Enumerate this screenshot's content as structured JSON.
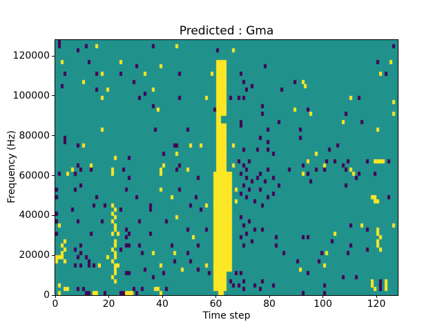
{
  "figure": {
    "background": "#ffffff",
    "text_color": "#000000",
    "spine_color": "#000000"
  },
  "chart_data": {
    "type": "heatmap",
    "title": "Predicted : Gma",
    "xlabel": "Time step",
    "ylabel": "Frequency (Hz)",
    "xlim": [
      0,
      128
    ],
    "ylim": [
      0,
      128000
    ],
    "x_ticks": [
      0,
      20,
      40,
      60,
      80,
      100,
      120
    ],
    "y_ticks": [
      0,
      20000,
      40000,
      60000,
      80000,
      100000,
      120000
    ],
    "grid": {
      "cols": 128,
      "rows": 64,
      "row_index_origin": "top",
      "hz_per_row": 2000,
      "grid_lines": false
    },
    "legend": "none",
    "colormap": {
      "name": "viridis-3-level",
      "levels": {
        "0": "#440154",
        "1": "#21918c",
        "2": "#fde725"
      }
    },
    "background_value": 1,
    "bands": [
      {
        "c0": 60,
        "c1": 64,
        "r0": 5,
        "r1": 19,
        "v": 2
      },
      {
        "c0": 60,
        "c1": 62,
        "r0": 19,
        "r1": 21,
        "v": 2
      },
      {
        "c0": 60,
        "c1": 64,
        "r0": 21,
        "r1": 33,
        "v": 2
      },
      {
        "c0": 59,
        "c1": 66,
        "r0": 33,
        "r1": 58,
        "v": 2
      },
      {
        "c0": 59,
        "c1": 64,
        "r0": 58,
        "r1": 63,
        "v": 2
      }
    ],
    "cells": [
      [
        1,
        0,
        0
      ],
      [
        1,
        1,
        0
      ],
      [
        8,
        2,
        0
      ],
      [
        11,
        1,
        0
      ],
      [
        15,
        1,
        2
      ],
      [
        36,
        1,
        0
      ],
      [
        45,
        1,
        2
      ],
      [
        60,
        2,
        0
      ],
      [
        2,
        5,
        2
      ],
      [
        12,
        5,
        0
      ],
      [
        24,
        5,
        2
      ],
      [
        30,
        6,
        0
      ],
      [
        39,
        6,
        2
      ],
      [
        3,
        8,
        0
      ],
      [
        15,
        8,
        0
      ],
      [
        17,
        8,
        2
      ],
      [
        24,
        8,
        0
      ],
      [
        33,
        8,
        2
      ],
      [
        46,
        8,
        0
      ],
      [
        58,
        8,
        2
      ],
      [
        10,
        10,
        2
      ],
      [
        29,
        10,
        0
      ],
      [
        2,
        11,
        0
      ],
      [
        15,
        12,
        0
      ],
      [
        19,
        12,
        2
      ],
      [
        33,
        13,
        0
      ],
      [
        36,
        12,
        2
      ],
      [
        17,
        14,
        2
      ],
      [
        31,
        14,
        0
      ],
      [
        46,
        14,
        0
      ],
      [
        56,
        14,
        2
      ],
      [
        36,
        16,
        0
      ],
      [
        38,
        17,
        2
      ],
      [
        59,
        17,
        0
      ],
      [
        17,
        22,
        2
      ],
      [
        37,
        22,
        0
      ],
      [
        49,
        22,
        0
      ],
      [
        3,
        24,
        0
      ],
      [
        3,
        25,
        0
      ],
      [
        8,
        26,
        0
      ],
      [
        10,
        26,
        2
      ],
      [
        44,
        26,
        0
      ],
      [
        45,
        26,
        0
      ],
      [
        50,
        26,
        2
      ],
      [
        54,
        26,
        2
      ],
      [
        40,
        28,
        0
      ],
      [
        45,
        28,
        2
      ],
      [
        22,
        29,
        2
      ],
      [
        27,
        29,
        0
      ],
      [
        8,
        31,
        0
      ],
      [
        13,
        31,
        2
      ],
      [
        40,
        31,
        2
      ],
      [
        46,
        31,
        0
      ],
      [
        66,
        2,
        2
      ],
      [
        126,
        1,
        0
      ],
      [
        120,
        5,
        0
      ],
      [
        125,
        5,
        2
      ],
      [
        78,
        6,
        0
      ],
      [
        69,
        8,
        0
      ],
      [
        121,
        8,
        2
      ],
      [
        123,
        8,
        0
      ],
      [
        70,
        10,
        0
      ],
      [
        73,
        11,
        0
      ],
      [
        71,
        12,
        0
      ],
      [
        89,
        10,
        0
      ],
      [
        92,
        10,
        2
      ],
      [
        93,
        11,
        2
      ],
      [
        84,
        12,
        0
      ],
      [
        65,
        14,
        0
      ],
      [
        68,
        14,
        0
      ],
      [
        70,
        14,
        0
      ],
      [
        110,
        14,
        2
      ],
      [
        113,
        14,
        0
      ],
      [
        126,
        15,
        2
      ],
      [
        77,
        16,
        0
      ],
      [
        89,
        17,
        2
      ],
      [
        94,
        17,
        0
      ],
      [
        77,
        18,
        0
      ],
      [
        95,
        18,
        2
      ],
      [
        108,
        18,
        0
      ],
      [
        126,
        18,
        2
      ],
      [
        69,
        20,
        0
      ],
      [
        83,
        20,
        0
      ],
      [
        107,
        20,
        2
      ],
      [
        114,
        20,
        0
      ],
      [
        69,
        21,
        0
      ],
      [
        79,
        22,
        0
      ],
      [
        91,
        22,
        0
      ],
      [
        120,
        22,
        2
      ],
      [
        76,
        24,
        0
      ],
      [
        79,
        25,
        0
      ],
      [
        91,
        24,
        0
      ],
      [
        66,
        26,
        2
      ],
      [
        102,
        27,
        0
      ],
      [
        105,
        26,
        0
      ],
      [
        70,
        27,
        0
      ],
      [
        75,
        27,
        0
      ],
      [
        79,
        27,
        0
      ],
      [
        81,
        28,
        0
      ],
      [
        97,
        28,
        2
      ],
      [
        101,
        30,
        0
      ],
      [
        104,
        30,
        0
      ],
      [
        109,
        30,
        0
      ],
      [
        116,
        30,
        0
      ],
      [
        119,
        30,
        2
      ],
      [
        120,
        30,
        2
      ],
      [
        121,
        30,
        2
      ],
      [
        122,
        30,
        2
      ],
      [
        124,
        30,
        0
      ],
      [
        68,
        30,
        0
      ],
      [
        72,
        30,
        0
      ],
      [
        70,
        31,
        0
      ],
      [
        66,
        31,
        2
      ],
      [
        92,
        31,
        0
      ],
      [
        94,
        30,
        2
      ],
      [
        100,
        31,
        2
      ],
      [
        107,
        31,
        0
      ],
      [
        1,
        33,
        0
      ],
      [
        4,
        33,
        2
      ],
      [
        7,
        33,
        0
      ],
      [
        6,
        32,
        2
      ],
      [
        9,
        32,
        0
      ],
      [
        13,
        32,
        0
      ],
      [
        21,
        32,
        2
      ],
      [
        21,
        33,
        2
      ],
      [
        25,
        32,
        0
      ],
      [
        27,
        34,
        0
      ],
      [
        45,
        32,
        0
      ],
      [
        39,
        32,
        2
      ],
      [
        39,
        33,
        2
      ],
      [
        49,
        32,
        2
      ],
      [
        53,
        34,
        0
      ],
      [
        0,
        37,
        0
      ],
      [
        7,
        37,
        0
      ],
      [
        9,
        36,
        0
      ],
      [
        39,
        37,
        2
      ],
      [
        43,
        39,
        2
      ],
      [
        46,
        37,
        0
      ],
      [
        52,
        39,
        0
      ],
      [
        26,
        37,
        0
      ],
      [
        30,
        39,
        0
      ],
      [
        0,
        39,
        0
      ],
      [
        15,
        39,
        0
      ],
      [
        0,
        43,
        0
      ],
      [
        6,
        42,
        0
      ],
      [
        14,
        41,
        0
      ],
      [
        18,
        41,
        0
      ],
      [
        21,
        41,
        2
      ],
      [
        22,
        42,
        2
      ],
      [
        21,
        43,
        2
      ],
      [
        24,
        42,
        0
      ],
      [
        35,
        41,
        0
      ],
      [
        35,
        42,
        0
      ],
      [
        50,
        41,
        0
      ],
      [
        56,
        41,
        2
      ],
      [
        54,
        42,
        0
      ],
      [
        0,
        45,
        0
      ],
      [
        1,
        46,
        2
      ],
      [
        8,
        45,
        0
      ],
      [
        17,
        45,
        0
      ],
      [
        22,
        44,
        2
      ],
      [
        21,
        45,
        2
      ],
      [
        22,
        46,
        2
      ],
      [
        22,
        47,
        2
      ],
      [
        21,
        48,
        2
      ],
      [
        23,
        48,
        2
      ],
      [
        13,
        48,
        0
      ],
      [
        26,
        47,
        0
      ],
      [
        27,
        48,
        0
      ],
      [
        26,
        49,
        0
      ],
      [
        31,
        45,
        0
      ],
      [
        35,
        48,
        0
      ],
      [
        41,
        45,
        0
      ],
      [
        45,
        44,
        2
      ],
      [
        49,
        47,
        0
      ],
      [
        56,
        47,
        0
      ],
      [
        51,
        49,
        2
      ],
      [
        0,
        48,
        0
      ],
      [
        3,
        50,
        2
      ],
      [
        2,
        51,
        2
      ],
      [
        9,
        51,
        0
      ],
      [
        3,
        52,
        2
      ],
      [
        2,
        53,
        2
      ],
      [
        0,
        54,
        2
      ],
      [
        1,
        54,
        2
      ],
      [
        2,
        54,
        2
      ],
      [
        3,
        55,
        2
      ],
      [
        0,
        55,
        2
      ],
      [
        7,
        52,
        0
      ],
      [
        9,
        53,
        0
      ],
      [
        8,
        54,
        0
      ],
      [
        11,
        54,
        0
      ],
      [
        12,
        55,
        0
      ],
      [
        7,
        56,
        0
      ],
      [
        9,
        56,
        0
      ],
      [
        12,
        56,
        0
      ],
      [
        14,
        56,
        0
      ],
      [
        16,
        56,
        2
      ],
      [
        19,
        54,
        2
      ],
      [
        22,
        50,
        2
      ],
      [
        22,
        51,
        2
      ],
      [
        21,
        52,
        2
      ],
      [
        22,
        53,
        2
      ],
      [
        22,
        54,
        2
      ],
      [
        21,
        55,
        2
      ],
      [
        22,
        56,
        2
      ],
      [
        23,
        56,
        2
      ],
      [
        22,
        57,
        2
      ],
      [
        22,
        58,
        2
      ],
      [
        21,
        59,
        2
      ],
      [
        22,
        60,
        2
      ],
      [
        24,
        52,
        0
      ],
      [
        26,
        51,
        0
      ],
      [
        27,
        51,
        0
      ],
      [
        26,
        58,
        0
      ],
      [
        27,
        58,
        0
      ],
      [
        33,
        57,
        0
      ],
      [
        31,
        51,
        0
      ],
      [
        32,
        53,
        0
      ],
      [
        36,
        53,
        2
      ],
      [
        36,
        59,
        0
      ],
      [
        40,
        58,
        0
      ],
      [
        39,
        56,
        2
      ],
      [
        43,
        51,
        0
      ],
      [
        44,
        53,
        2
      ],
      [
        44,
        55,
        0
      ],
      [
        47,
        57,
        2
      ],
      [
        49,
        53,
        0
      ],
      [
        50,
        55,
        0
      ],
      [
        53,
        51,
        0
      ],
      [
        53,
        57,
        0
      ],
      [
        56,
        56,
        2
      ],
      [
        57,
        58,
        0
      ],
      [
        1,
        61,
        2
      ],
      [
        3,
        62,
        2
      ],
      [
        4,
        62,
        2
      ],
      [
        8,
        62,
        0
      ],
      [
        10,
        62,
        0
      ],
      [
        29,
        62,
        0
      ],
      [
        32,
        62,
        0
      ],
      [
        37,
        62,
        2
      ],
      [
        38,
        62,
        2
      ],
      [
        41,
        62,
        0
      ],
      [
        1,
        63,
        2
      ],
      [
        11,
        63,
        0
      ],
      [
        12,
        63,
        0
      ],
      [
        14,
        63,
        2
      ],
      [
        15,
        63,
        2
      ],
      [
        18,
        63,
        0
      ],
      [
        24,
        63,
        0
      ],
      [
        25,
        63,
        0
      ],
      [
        26,
        63,
        2
      ],
      [
        27,
        63,
        2
      ],
      [
        28,
        63,
        2
      ],
      [
        30,
        63,
        0
      ],
      [
        39,
        63,
        2
      ],
      [
        61,
        63,
        2
      ],
      [
        62,
        63,
        2
      ],
      [
        67,
        37,
        2
      ],
      [
        67,
        40,
        2
      ],
      [
        69,
        33,
        0
      ],
      [
        71,
        34,
        0
      ],
      [
        73,
        35,
        0
      ],
      [
        70,
        36,
        0
      ],
      [
        72,
        37,
        0
      ],
      [
        69,
        38,
        0
      ],
      [
        71,
        39,
        0
      ],
      [
        74,
        40,
        0
      ],
      [
        75,
        34,
        0
      ],
      [
        78,
        35,
        0
      ],
      [
        76,
        37,
        0
      ],
      [
        79,
        39,
        0
      ],
      [
        77,
        41,
        0
      ],
      [
        76,
        33,
        0
      ],
      [
        81,
        34,
        0
      ],
      [
        83,
        36,
        0
      ],
      [
        81,
        38,
        0
      ],
      [
        87,
        32,
        0
      ],
      [
        92,
        33,
        2
      ],
      [
        94,
        33,
        0
      ],
      [
        95,
        35,
        0
      ],
      [
        100,
        32,
        0
      ],
      [
        111,
        33,
        2
      ],
      [
        108,
        36,
        0
      ],
      [
        112,
        34,
        0
      ],
      [
        118,
        39,
        2
      ],
      [
        119,
        39,
        2
      ],
      [
        119,
        40,
        2
      ],
      [
        120,
        40,
        2
      ],
      [
        124,
        39,
        0
      ],
      [
        71,
        32,
        0
      ],
      [
        79,
        32,
        0
      ],
      [
        97,
        32,
        0
      ],
      [
        108,
        32,
        0
      ],
      [
        110,
        32,
        2
      ],
      [
        113,
        33,
        0
      ],
      [
        119,
        33,
        0
      ],
      [
        110,
        46,
        0
      ],
      [
        114,
        46,
        2
      ],
      [
        116,
        47,
        0
      ],
      [
        126,
        46,
        2
      ],
      [
        120,
        47,
        2
      ],
      [
        120,
        48,
        2
      ],
      [
        121,
        49,
        2
      ],
      [
        120,
        50,
        2
      ],
      [
        120,
        51,
        2
      ],
      [
        121,
        52,
        2
      ],
      [
        116,
        52,
        0
      ],
      [
        69,
        44,
        0
      ],
      [
        72,
        45,
        0
      ],
      [
        70,
        46,
        0
      ],
      [
        74,
        47,
        0
      ],
      [
        71,
        48,
        0
      ],
      [
        69,
        49,
        0
      ],
      [
        73,
        50,
        0
      ],
      [
        70,
        51,
        0
      ],
      [
        77,
        47,
        0
      ],
      [
        82,
        49,
        0
      ],
      [
        82,
        51,
        0
      ],
      [
        85,
        53,
        0
      ],
      [
        92,
        49,
        0
      ],
      [
        94,
        49,
        0
      ],
      [
        90,
        55,
        0
      ],
      [
        91,
        57,
        2
      ],
      [
        94,
        58,
        0
      ],
      [
        99,
        53,
        0
      ],
      [
        98,
        55,
        0
      ],
      [
        100,
        56,
        2
      ],
      [
        101,
        53,
        2
      ],
      [
        103,
        50,
        0
      ],
      [
        104,
        48,
        2
      ],
      [
        110,
        51,
        0
      ],
      [
        109,
        53,
        0
      ],
      [
        107,
        59,
        0
      ],
      [
        112,
        59,
        0
      ],
      [
        65,
        60,
        0
      ],
      [
        70,
        60,
        0
      ],
      [
        77,
        60,
        0
      ],
      [
        81,
        61,
        0
      ],
      [
        100,
        61,
        0
      ],
      [
        68,
        61,
        0
      ],
      [
        66,
        61,
        0
      ],
      [
        70,
        62,
        0
      ],
      [
        74,
        61,
        0
      ],
      [
        76,
        62,
        0
      ],
      [
        67,
        58,
        0
      ],
      [
        69,
        58,
        0
      ],
      [
        118,
        60,
        2
      ],
      [
        118,
        61,
        2
      ],
      [
        119,
        62,
        2
      ],
      [
        121,
        60,
        0
      ],
      [
        121,
        61,
        0
      ],
      [
        121,
        62,
        0
      ],
      [
        123,
        60,
        2
      ],
      [
        123,
        61,
        2
      ],
      [
        123,
        62,
        2
      ],
      [
        92,
        63,
        0
      ],
      [
        100,
        63,
        0
      ]
    ]
  }
}
